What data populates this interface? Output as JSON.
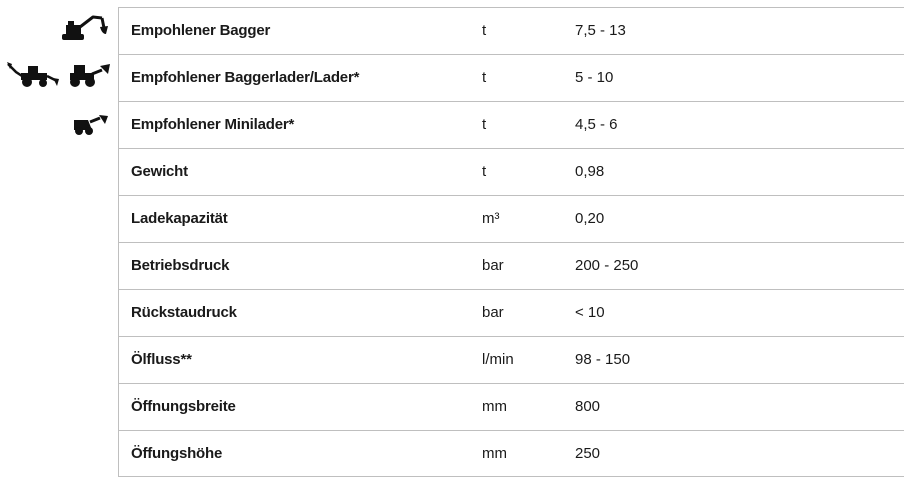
{
  "machine_icons": [
    "excavator-icon",
    "backhoe-loader-icon",
    "loader-icon",
    "mini-loader-icon"
  ],
  "spec_table": {
    "rows": [
      {
        "label": "Empohlener Bagger",
        "unit": "t",
        "value": "7,5 - 13"
      },
      {
        "label": "Empfohlener Baggerlader/Lader*",
        "unit": "t",
        "value": "5 - 10"
      },
      {
        "label": "Empfohlener Minilader*",
        "unit": "t",
        "value": "4,5 - 6"
      },
      {
        "label": "Gewicht",
        "unit": "t",
        "value": "0,98"
      },
      {
        "label": "Ladekapazität",
        "unit": "m³",
        "value": "0,20"
      },
      {
        "label": "Betriebsdruck",
        "unit": "bar",
        "value": "200 - 250"
      },
      {
        "label": "Rückstaudruck",
        "unit": "bar",
        "value": "< 10"
      },
      {
        "label": "Ölfluss**",
        "unit": "l/min",
        "value": "98 - 150"
      },
      {
        "label": "Öffnungsbreite",
        "unit": "mm",
        "value": "800"
      },
      {
        "label": "Öffungshöhe",
        "unit": "mm",
        "value": "250"
      }
    ]
  }
}
